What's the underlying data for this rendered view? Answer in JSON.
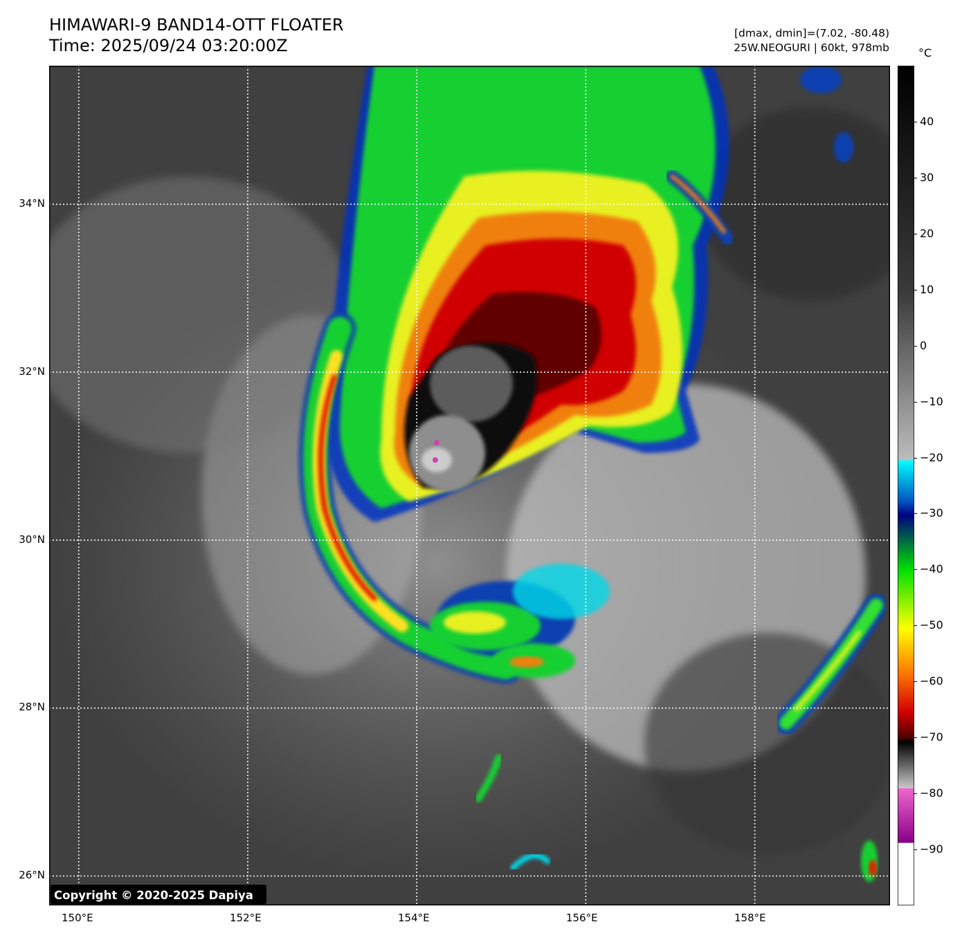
{
  "header": {
    "title_line1": "HIMAWARI-9 BAND14-OTT FLOATER",
    "title_line2": "Time: 2025/09/24 03:20:00Z",
    "range_text": "[dmax, dmin]=(7.02, -80.48)",
    "storm_text": "25W.NEOGURI | 60kt, 978mb"
  },
  "map": {
    "lat_labels": [
      "34°N",
      "32°N",
      "30°N",
      "28°N",
      "26°N"
    ],
    "lon_labels": [
      "150°E",
      "152°E",
      "154°E",
      "156°E",
      "158°E"
    ],
    "lon_range": [
      149.65,
      159.6
    ],
    "lat_range": [
      25.65,
      35.65
    ],
    "copyright": "Copyright © 2020-2025 Dapiya"
  },
  "colorbar": {
    "unit": "°C",
    "ticks": [
      "40",
      "30",
      "20",
      "10",
      "0",
      "−10",
      "−20",
      "−30",
      "−40",
      "−50",
      "−60",
      "−70",
      "−80",
      "−90"
    ],
    "range": [
      -100,
      50
    ]
  },
  "colors": {
    "cold_top": "#000000",
    "red": "#d00000",
    "yellow": "#ffff00",
    "green": "#30e030",
    "blue": "#1040b0",
    "cyan": "#00ffff",
    "magenta": "#cc44aa"
  }
}
